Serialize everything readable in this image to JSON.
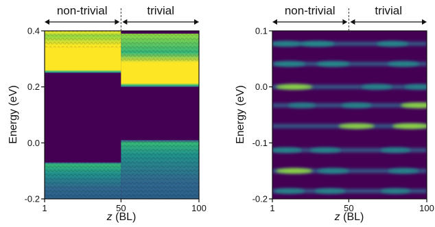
{
  "colors": {
    "viridis_dark": "#440154",
    "viridis_blue": "#31688e",
    "viridis_teal": "#21918c",
    "viridis_green": "#35b779",
    "viridis_lime": "#90d743",
    "viridis_yellow": "#fde725",
    "axis": "#111111"
  },
  "chart_data": [
    {
      "type": "heatmap",
      "panel": "left",
      "colormap": "viridis",
      "xlabel_italic": "z",
      "xlabel_unit": "(BL)",
      "ylabel": "Energy (eV)",
      "xlim": [
        1,
        100
      ],
      "ylim": [
        -0.2,
        0.4
      ],
      "xticks": [
        1,
        50,
        100
      ],
      "yticks": [
        -0.2,
        0.0,
        0.2,
        0.4
      ],
      "ytick_labels": [
        "-0.2",
        "0.0",
        "0.2",
        "0.4"
      ],
      "regions": [
        {
          "label": "non-trivial",
          "x_range": [
            1,
            50
          ]
        },
        {
          "label": "trivial",
          "x_range": [
            50,
            100
          ]
        }
      ],
      "boundary_x": 50,
      "bands": [
        {
          "region": "non-trivial",
          "edge": "valence",
          "energy_range": [
            -0.2,
            -0.07
          ]
        },
        {
          "region": "non-trivial",
          "edge": "conduction",
          "energy_range": [
            0.25,
            0.4
          ]
        },
        {
          "region": "trivial",
          "edge": "valence",
          "energy_range": [
            -0.2,
            0.01
          ]
        },
        {
          "region": "trivial",
          "edge": "conduction",
          "energy_range": [
            0.2,
            0.39
          ]
        }
      ]
    },
    {
      "type": "heatmap",
      "panel": "right",
      "colormap": "viridis",
      "xlabel_italic": "z",
      "xlabel_unit": "(BL)",
      "ylabel": "Energy (eV)",
      "xlim": [
        1,
        100
      ],
      "ylim": [
        -0.2,
        0.1
      ],
      "xticks": [
        1,
        50,
        100
      ],
      "yticks": [
        -0.2,
        -0.1,
        0.0,
        0.1
      ],
      "ytick_labels": [
        "-0.2",
        "-0.1",
        "0.0",
        "0.1"
      ],
      "regions": [
        {
          "label": "non-trivial",
          "x_range": [
            1,
            50
          ]
        },
        {
          "label": "trivial",
          "x_range": [
            50,
            100
          ]
        }
      ],
      "boundary_x": 50,
      "states": [
        {
          "energy": 0.077,
          "peaks_x": [
            10,
            30,
            78
          ],
          "intensity": [
            0.55,
            0.75,
            0.6
          ]
        },
        {
          "energy": 0.041,
          "peaks_x": [
            12,
            40,
            85
          ],
          "intensity": [
            0.6,
            0.7,
            0.6
          ]
        },
        {
          "energy": 0.0,
          "peaks_x": [
            15,
            68,
            95
          ],
          "intensity": [
            0.9,
            0.55,
            0.45
          ]
        },
        {
          "energy": -0.033,
          "peaks_x": [
            20,
            55,
            95
          ],
          "intensity": [
            0.35,
            0.55,
            0.9
          ]
        },
        {
          "energy": -0.07,
          "peaks_x": [
            55,
            90
          ],
          "intensity": [
            0.85,
            0.95
          ]
        },
        {
          "energy": -0.113,
          "peaks_x": [
            10,
            35,
            80
          ],
          "intensity": [
            0.55,
            0.55,
            0.5
          ]
        },
        {
          "energy": -0.15,
          "peaks_x": [
            15,
            40,
            85
          ],
          "intensity": [
            0.9,
            0.6,
            0.55
          ]
        },
        {
          "energy": -0.186,
          "peaks_x": [
            12,
            38,
            80
          ],
          "intensity": [
            0.5,
            0.55,
            0.5
          ]
        }
      ]
    }
  ]
}
